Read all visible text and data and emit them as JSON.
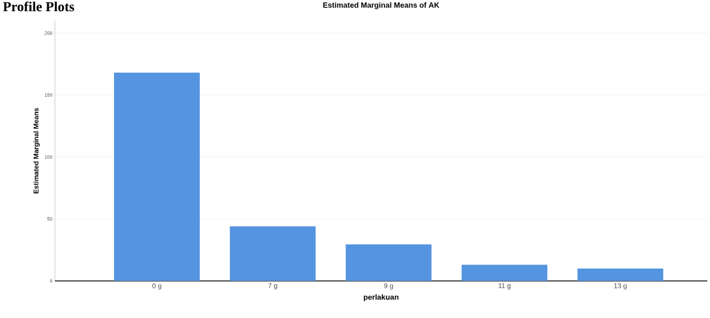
{
  "chart_data": {
    "type": "bar",
    "title": "Estimated Marginal Means of AK",
    "xlabel": "perlakuan",
    "ylabel": "Estimated Marginal Means",
    "annotations": [
      "Profile Plots"
    ],
    "categories": [
      "0 g",
      "7 g",
      "9 g",
      "11 g",
      "13 g"
    ],
    "values": [
      168,
      44,
      29.5,
      13,
      10
    ],
    "color": "#5594e0",
    "ylim": [
      0,
      210
    ],
    "yticks": [
      0,
      50,
      100,
      150,
      200
    ],
    "grid": "y"
  }
}
